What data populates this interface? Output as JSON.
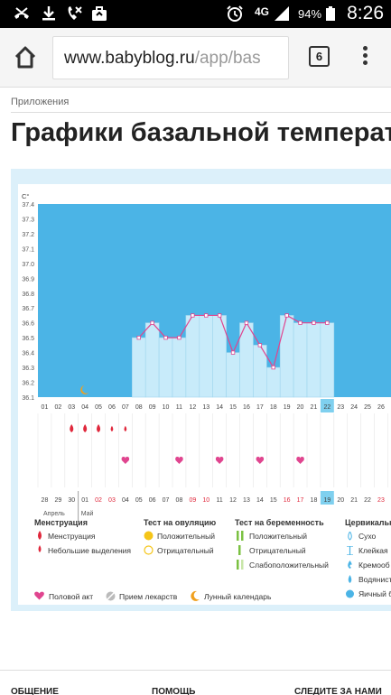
{
  "status_bar": {
    "network": "4G",
    "battery": "94%",
    "time": "8:26"
  },
  "browser": {
    "url_host": "www.babyblog.ru",
    "url_path": "/app/bas",
    "tab_count": "6"
  },
  "page": {
    "breadcrumb": "Приложения",
    "title": "Графики базальной температ"
  },
  "chart_data": {
    "type": "line",
    "y_unit": "C°",
    "ylim": [
      36.1,
      37.4
    ],
    "y_ticks": [
      "37.4",
      "37.3",
      "37.2",
      "37.1",
      "37.0",
      "36.9",
      "36.8",
      "36.7",
      "36.6",
      "36.5",
      "36.4",
      "36.3",
      "36.2",
      "36.1"
    ],
    "cycle_days": [
      "01",
      "02",
      "03",
      "04",
      "05",
      "06",
      "07",
      "08",
      "09",
      "10",
      "11",
      "12",
      "13",
      "14",
      "15",
      "16",
      "17",
      "18",
      "19",
      "20",
      "21",
      "22",
      "23",
      "24",
      "25",
      "26"
    ],
    "highlight_day": "22",
    "temperatures": [
      null,
      null,
      null,
      null,
      null,
      null,
      null,
      36.5,
      36.6,
      36.5,
      36.5,
      36.65,
      36.65,
      36.65,
      36.4,
      36.6,
      36.45,
      36.3,
      36.65,
      36.6,
      36.6,
      36.6,
      null,
      null,
      null,
      null
    ],
    "dates": [
      "28",
      "29",
      "30",
      "01",
      "02",
      "03",
      "04",
      "05",
      "06",
      "07",
      "08",
      "09",
      "10",
      "11",
      "12",
      "13",
      "14",
      "15",
      "16",
      "17",
      "18",
      "19",
      "20",
      "21",
      "22",
      "23"
    ],
    "weekend_dates_red": [
      "02",
      "03",
      "09",
      "10",
      "16",
      "17",
      "23"
    ],
    "month_labels": [
      "Апрель",
      "Май"
    ],
    "highlight_date": "19"
  },
  "legend": {
    "menstruation": {
      "title": "Менструация",
      "items": [
        "Менструация",
        "Небольшие выделения"
      ]
    },
    "ovulation_test": {
      "title": "Тест на овуляцию",
      "items": [
        "Положительный",
        "Отрицательный"
      ]
    },
    "pregnancy_test": {
      "title": "Тест на беременность",
      "items": [
        "Положительный",
        "Отрицательный",
        "Слабоположительный"
      ]
    },
    "cervical": {
      "title": "Цервикальн",
      "items": [
        "Сухо",
        "Клейкая",
        "Кремооб",
        "Водянист",
        "Яичный б"
      ]
    },
    "bottom": [
      "Половой акт",
      "Прием лекарств",
      "Лунный календарь"
    ]
  },
  "footer": {
    "col1": "ОБЩЕНИЕ",
    "col2": "ПОМОЩЬ",
    "col3": "СЛЕДИТЕ ЗА НАМИ"
  },
  "colors": {
    "chart_fill": "#4bb4e6",
    "bar_fill": "#c8ebfa",
    "line": "#e0458f",
    "menstruation": "#e0283c",
    "highlight": "#7fd0ef"
  }
}
